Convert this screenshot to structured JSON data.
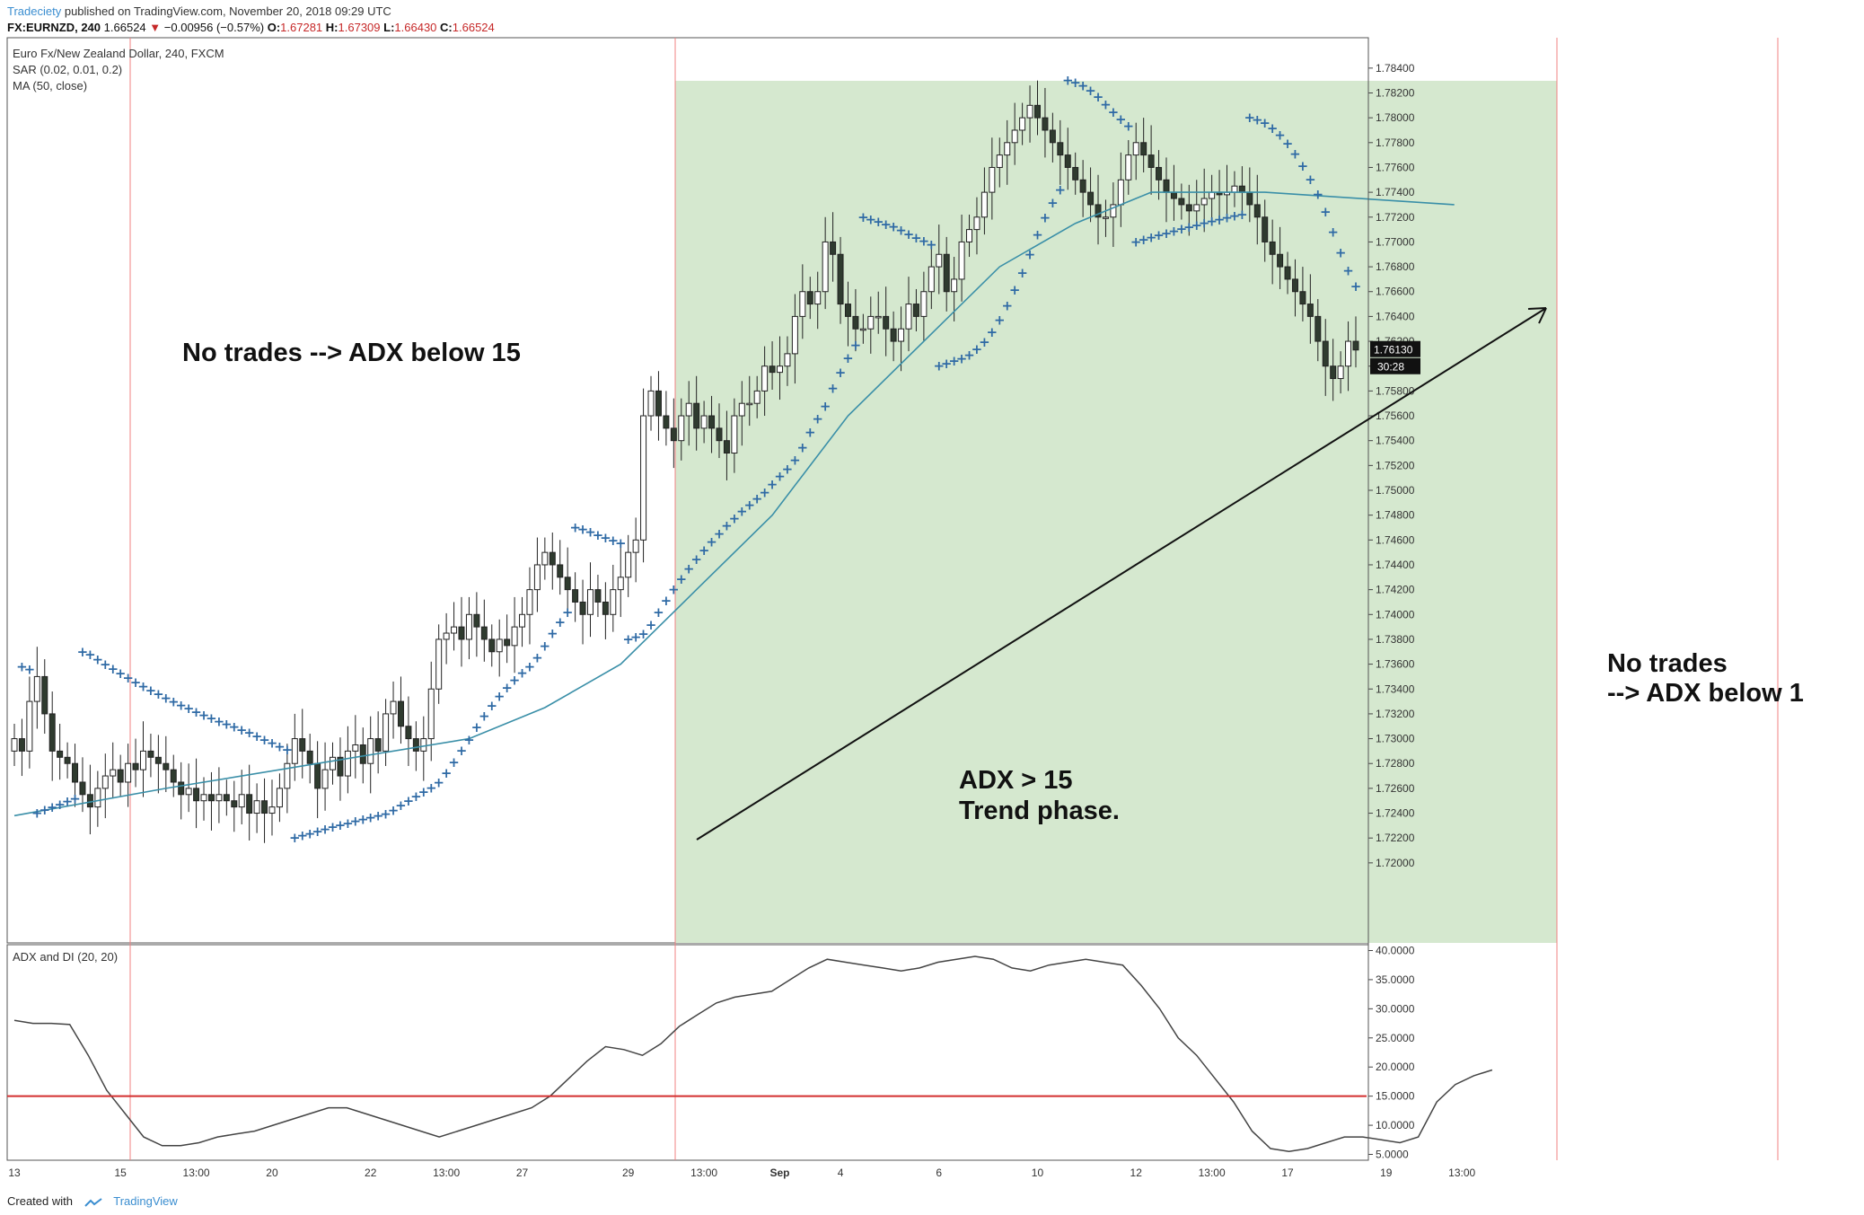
{
  "header": {
    "brand": "Tradeciety",
    "published": "published on TradingView.com, November 20, 2018 09:29 UTC",
    "symbol": "FX:EURNZD, 240",
    "last": "1.66524",
    "change": "−0.00956 (−0.57%)",
    "o_label": "O:",
    "o_val": "1.67281",
    "h_label": "H:",
    "h_val": "1.67309",
    "l_label": "L:",
    "l_val": "1.66430",
    "c_label": "C:",
    "c_val": "1.66524"
  },
  "legend": {
    "title": "Euro Fx/New Zealand Dollar, 240, FXCM",
    "sar": "SAR (0.02, 0.01, 0.2)",
    "ma": "MA (50, close)",
    "adx": "ADX and DI (20, 20)"
  },
  "annotations": {
    "left_text": "No trades --> ADX below 15",
    "mid_line1": "ADX > 15",
    "mid_line2": "Trend phase.",
    "right_line1": "No trades",
    "right_line2": "--> ADX below 1"
  },
  "price_tag": {
    "price": "1.76130",
    "timer": "30:28"
  },
  "footer": {
    "created": "Created with",
    "tv": "TradingView"
  },
  "colors": {
    "up_candle": "#ffffff",
    "down_candle": "#2f3b2f",
    "sar": "#2f6aa5",
    "ma": "#3a8fa8",
    "adx_line": "#444444",
    "threshold": "#d32f2f",
    "trend_zone": "#d5e8cf",
    "vline": "#f08080"
  },
  "chart_data": [
    {
      "type": "candlestick",
      "title": "Euro Fx/New Zealand Dollar, 240, FXCM",
      "ylim": [
        1.715,
        1.785
      ],
      "y_ticks": [
        "1.78400",
        "1.78200",
        "1.78000",
        "1.77800",
        "1.77600",
        "1.77400",
        "1.77200",
        "1.77000",
        "1.76800",
        "1.76600",
        "1.76400",
        "1.76200",
        "1.76000",
        "1.75800",
        "1.75600",
        "1.75400",
        "1.75200",
        "1.75000",
        "1.74800",
        "1.74600",
        "1.74400",
        "1.74200",
        "1.74000",
        "1.73800",
        "1.73600",
        "1.73400",
        "1.73200",
        "1.73000",
        "1.72800",
        "1.72600",
        "1.72400",
        "1.72200",
        "1.72000"
      ],
      "x_ticks": [
        "13",
        "15",
        "13:00",
        "20",
        "22",
        "13:00",
        "27",
        "29",
        "13:00",
        "Sep",
        "4",
        "6",
        "10",
        "12",
        "13:00",
        "17",
        "19",
        "13:00"
      ],
      "x_tick_index": [
        0,
        14,
        24,
        34,
        47,
        57,
        67,
        81,
        91,
        101,
        109,
        122,
        135,
        148,
        158,
        168,
        181,
        191
      ],
      "closes": [
        1.73,
        1.729,
        1.733,
        1.735,
        1.732,
        1.729,
        1.7285,
        1.728,
        1.7265,
        1.7255,
        1.7245,
        1.726,
        1.727,
        1.7275,
        1.7265,
        1.728,
        1.7275,
        1.729,
        1.7285,
        1.728,
        1.7275,
        1.7265,
        1.7255,
        1.726,
        1.725,
        1.7255,
        1.725,
        1.7255,
        1.725,
        1.7245,
        1.7255,
        1.724,
        1.725,
        1.724,
        1.7245,
        1.726,
        1.728,
        1.73,
        1.729,
        1.728,
        1.726,
        1.7275,
        1.7285,
        1.727,
        1.729,
        1.7295,
        1.728,
        1.73,
        1.729,
        1.732,
        1.733,
        1.731,
        1.73,
        1.729,
        1.73,
        1.734,
        1.738,
        1.7385,
        1.739,
        1.738,
        1.74,
        1.739,
        1.738,
        1.737,
        1.738,
        1.7375,
        1.739,
        1.74,
        1.742,
        1.744,
        1.745,
        1.744,
        1.743,
        1.742,
        1.741,
        1.74,
        1.742,
        1.741,
        1.74,
        1.742,
        1.743,
        1.745,
        1.746,
        1.756,
        1.758,
        1.756,
        1.755,
        1.754,
        1.756,
        1.757,
        1.755,
        1.756,
        1.755,
        1.754,
        1.753,
        1.756,
        1.757,
        1.757,
        1.758,
        1.76,
        1.7595,
        1.76,
        1.761,
        1.764,
        1.766,
        1.765,
        1.766,
        1.77,
        1.769,
        1.765,
        1.764,
        1.763,
        1.763,
        1.764,
        1.764,
        1.763,
        1.762,
        1.763,
        1.765,
        1.764,
        1.766,
        1.768,
        1.769,
        1.766,
        1.767,
        1.77,
        1.771,
        1.772,
        1.774,
        1.776,
        1.777,
        1.778,
        1.779,
        1.78,
        1.781,
        1.78,
        1.779,
        1.778,
        1.777,
        1.776,
        1.775,
        1.774,
        1.773,
        1.772,
        1.772,
        1.773,
        1.775,
        1.777,
        1.778,
        1.777,
        1.776,
        1.775,
        1.774,
        1.7735,
        1.773,
        1.7725,
        1.773,
        1.7735,
        1.774,
        1.7738,
        1.774,
        1.7745,
        1.774,
        1.773,
        1.772,
        1.77,
        1.769,
        1.768,
        1.767,
        1.766,
        1.765,
        1.764,
        1.762,
        1.76,
        1.759,
        1.76,
        1.762,
        1.7613
      ],
      "sma50": [
        1.7238,
        1.726,
        1.728,
        1.73,
        1.7325,
        1.736,
        1.742,
        1.748,
        1.756,
        1.762,
        1.768,
        1.7715,
        1.774,
        1.774,
        1.773
      ],
      "sma50_x": [
        0,
        20,
        40,
        60,
        70,
        80,
        90,
        100,
        110,
        120,
        130,
        140,
        150,
        165,
        190
      ]
    },
    {
      "type": "line",
      "title": "ADX and DI (20, 20)",
      "ylim": [
        4,
        41
      ],
      "y_ticks": [
        "40.0000",
        "35.0000",
        "30.0000",
        "25.0000",
        "20.0000",
        "15.0000",
        "10.0000",
        "5.0000"
      ],
      "threshold": 15,
      "adx": [
        28,
        27.5,
        27.5,
        27.3,
        22,
        16,
        12,
        8,
        6.5,
        6.5,
        7,
        8,
        8.5,
        9,
        10,
        11,
        12,
        13,
        13,
        12,
        11,
        10,
        9,
        8,
        9,
        10,
        11,
        12,
        13,
        15,
        18,
        21,
        23.5,
        23,
        22,
        24,
        27,
        29,
        31,
        32,
        32.5,
        33,
        35,
        37,
        38.5,
        38,
        37.5,
        37,
        36.5,
        37,
        38,
        38.5,
        39,
        38.5,
        37,
        36.5,
        37.5,
        38,
        38.5,
        38,
        37.5,
        34,
        30,
        25,
        22,
        18,
        14,
        9,
        6,
        5.5,
        6,
        7,
        8,
        8,
        7.5,
        7,
        8,
        14,
        17,
        18.5,
        19.5
      ],
      "adx_x_range": [
        0,
        195
      ]
    }
  ]
}
